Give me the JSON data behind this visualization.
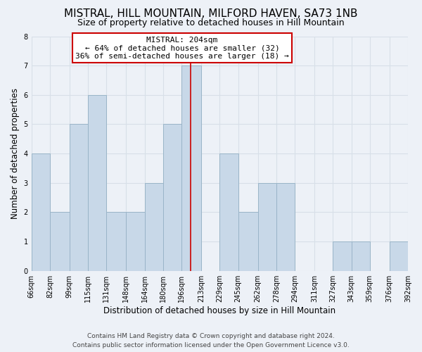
{
  "title": "MISTRAL, HILL MOUNTAIN, MILFORD HAVEN, SA73 1NB",
  "subtitle": "Size of property relative to detached houses in Hill Mountain",
  "xlabel": "Distribution of detached houses by size in Hill Mountain",
  "ylabel": "Number of detached properties",
  "footer_lines": [
    "Contains HM Land Registry data © Crown copyright and database right 2024.",
    "Contains public sector information licensed under the Open Government Licence v3.0."
  ],
  "bins": [
    66,
    82,
    99,
    115,
    131,
    148,
    164,
    180,
    196,
    213,
    229,
    245,
    262,
    278,
    294,
    311,
    327,
    343,
    359,
    376,
    392
  ],
  "bin_labels": [
    "66sqm",
    "82sqm",
    "99sqm",
    "115sqm",
    "131sqm",
    "148sqm",
    "164sqm",
    "180sqm",
    "196sqm",
    "213sqm",
    "229sqm",
    "245sqm",
    "262sqm",
    "278sqm",
    "294sqm",
    "311sqm",
    "327sqm",
    "343sqm",
    "359sqm",
    "376sqm",
    "392sqm"
  ],
  "counts": [
    4,
    2,
    5,
    6,
    2,
    2,
    3,
    5,
    7,
    0,
    4,
    2,
    3,
    3,
    0,
    0,
    1,
    1,
    0,
    1
  ],
  "bar_color": "#c8d8e8",
  "bar_edge_color": "#9ab4c8",
  "vline_x": 204,
  "vline_color": "#cc0000",
  "annotation_title": "MISTRAL: 204sqm",
  "annotation_line1": "← 64% of detached houses are smaller (32)",
  "annotation_line2": "36% of semi-detached houses are larger (18) →",
  "annotation_box_edge": "#cc0000",
  "annotation_box_bg": "white",
  "ylim": [
    0,
    8
  ],
  "yticks": [
    0,
    1,
    2,
    3,
    4,
    5,
    6,
    7,
    8
  ],
  "grid_color": "#d8dfe8",
  "background_color": "#edf1f7",
  "title_fontsize": 11,
  "subtitle_fontsize": 9,
  "axis_label_fontsize": 8.5,
  "tick_fontsize": 7,
  "annotation_fontsize": 8,
  "footer_fontsize": 6.5
}
